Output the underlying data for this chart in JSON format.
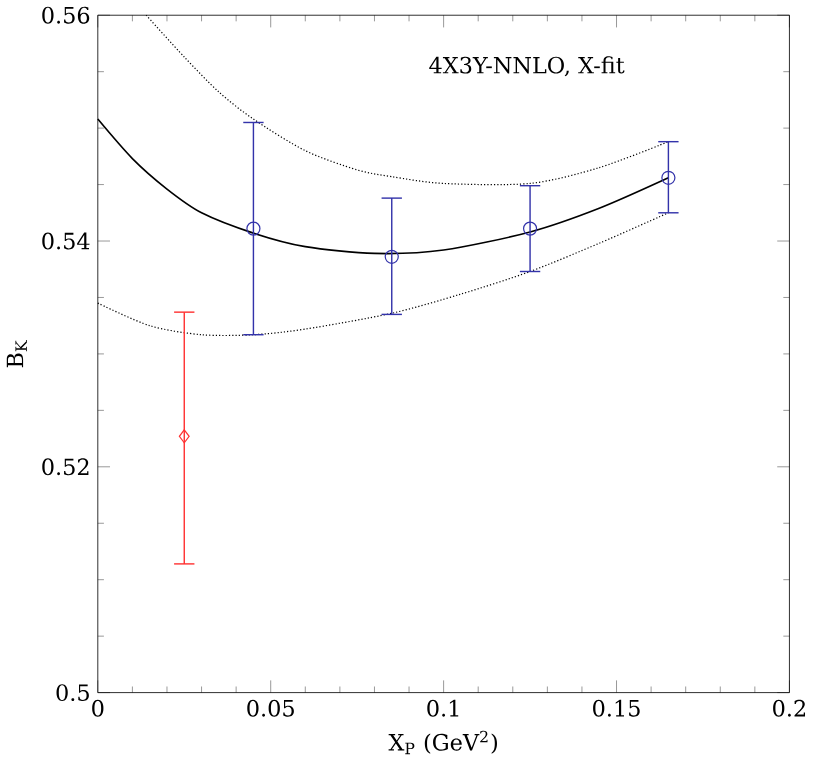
{
  "chart_data": {
    "type": "scatter",
    "xlabel": "X$_{P}$ (GeV$^{2}$)",
    "ylabel": "B$_{K}$",
    "annotations": [
      "4X3Y-NNLO, X-fit"
    ],
    "xlim": [
      0,
      0.2
    ],
    "ylim": [
      0.5,
      0.56
    ],
    "xticks": [
      0,
      0.05,
      0.1,
      0.15,
      0.2
    ],
    "yticks": [
      0.5,
      0.52,
      0.54,
      0.56
    ],
    "series": [
      {
        "type": "line",
        "color": "#000000",
        "line_style": "solid",
        "marker": "none",
        "x": [
          0,
          0.01,
          0.02,
          0.03,
          0.045,
          0.06,
          0.08,
          0.1,
          0.125,
          0.145,
          0.165
        ],
        "values": [
          0.5508,
          0.5473,
          0.5446,
          0.5425,
          0.5407,
          0.5395,
          0.5389,
          0.5392,
          0.5408,
          0.5429,
          0.5456
        ]
      },
      {
        "type": "line",
        "color": "#000000",
        "line_style": "dotted",
        "marker": "none",
        "x": [
          0.014,
          0.025,
          0.035,
          0.045,
          0.06,
          0.075,
          0.085,
          0.1,
          0.125,
          0.145,
          0.165
        ],
        "values": [
          0.56,
          0.5563,
          0.5532,
          0.5508,
          0.548,
          0.5463,
          0.5457,
          0.5451,
          0.5451,
          0.5465,
          0.5488
        ]
      },
      {
        "type": "line",
        "color": "#000000",
        "line_style": "dotted",
        "marker": "none",
        "x": [
          0,
          0.015,
          0.03,
          0.045,
          0.06,
          0.085,
          0.105,
          0.125,
          0.145,
          0.165
        ],
        "values": [
          0.5345,
          0.5325,
          0.5317,
          0.5317,
          0.5322,
          0.5336,
          0.5353,
          0.5373,
          0.5398,
          0.5425
        ]
      },
      {
        "color": "#3333aa",
        "marker": "circle",
        "x": [
          0.045,
          0.085,
          0.125,
          0.165
        ],
        "values": [
          0.5411,
          0.5386,
          0.5411,
          0.5456
        ],
        "errors": [
          [
            0.5317,
            0.5505
          ],
          [
            0.5335,
            0.5438
          ],
          [
            0.5373,
            0.5449
          ],
          [
            0.5425,
            0.5488
          ]
        ]
      },
      {
        "color": "#ff3333",
        "marker": "diamond",
        "x": [
          0.025
        ],
        "values": [
          0.5227
        ],
        "errors": [
          [
            0.5114,
            0.5337
          ]
        ]
      }
    ]
  }
}
